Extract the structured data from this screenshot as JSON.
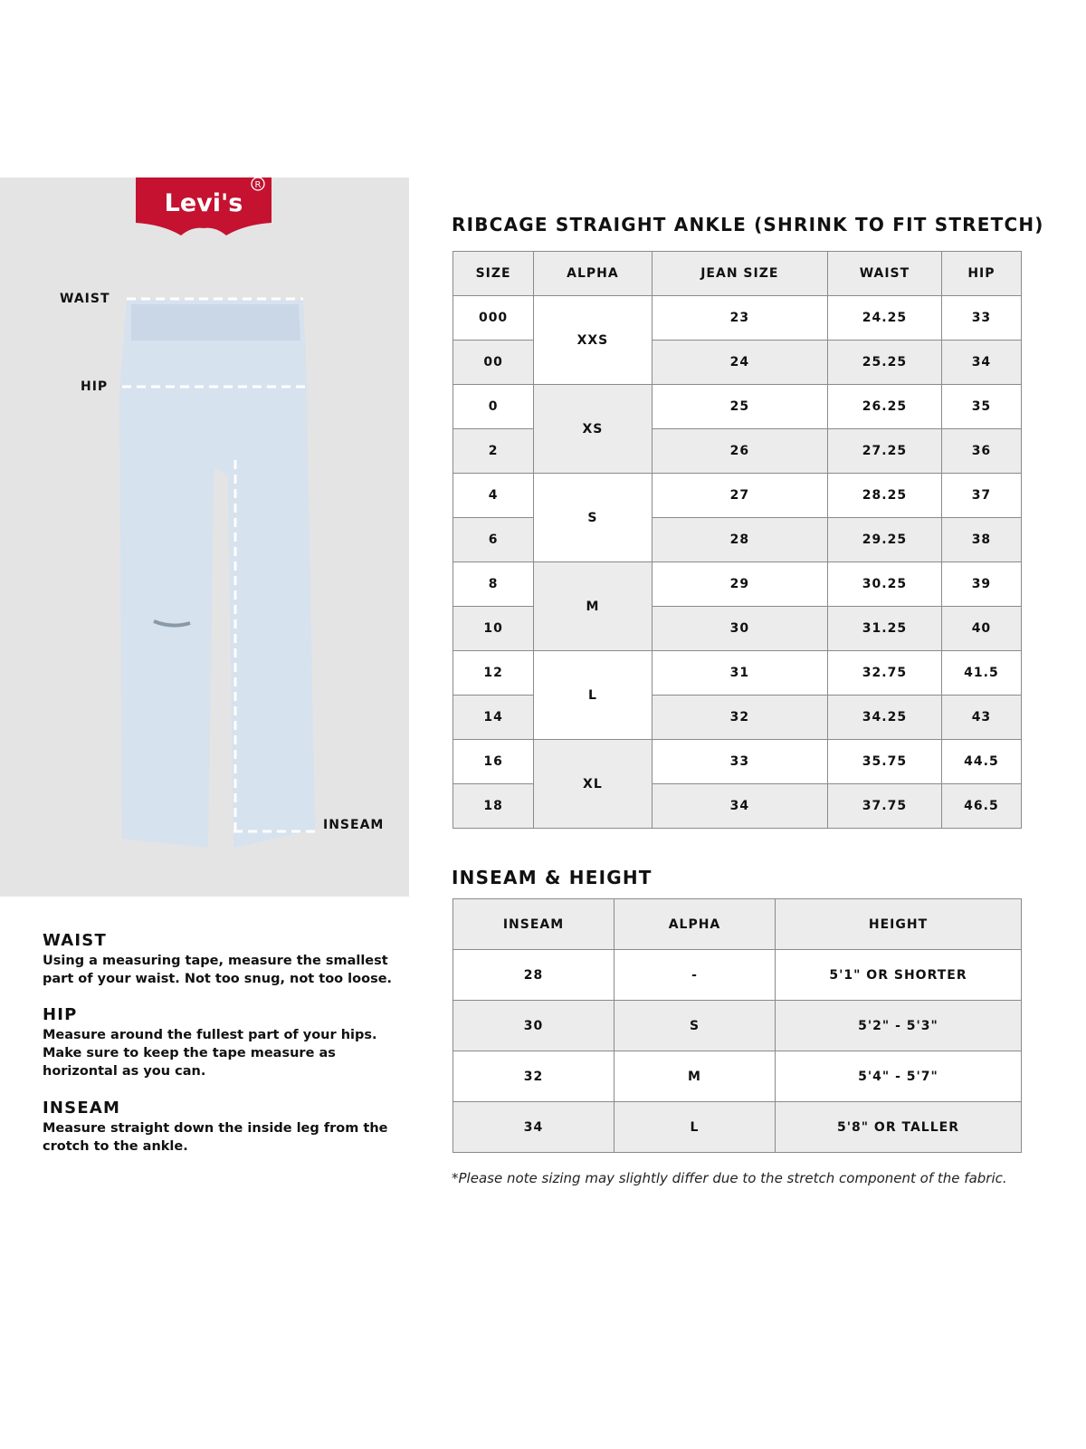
{
  "brand": {
    "logo_text": "Levi's",
    "color": "#c41230"
  },
  "diagram": {
    "labels": {
      "waist": "WAIST",
      "hip": "HIP",
      "inseam": "INSEAM"
    }
  },
  "size_chart": {
    "title": "RIBCAGE STRAIGHT ANKLE (SHRINK TO FIT STRETCH)",
    "headers": [
      "SIZE",
      "ALPHA",
      "JEAN SIZE",
      "WAIST",
      "HIP"
    ],
    "rows": [
      {
        "size": "000",
        "alpha": "XXS",
        "jean": "23",
        "waist": "24.25",
        "hip": "33"
      },
      {
        "size": "00",
        "alpha": "XXS",
        "jean": "24",
        "waist": "25.25",
        "hip": "34"
      },
      {
        "size": "0",
        "alpha": "XS",
        "jean": "25",
        "waist": "26.25",
        "hip": "35"
      },
      {
        "size": "2",
        "alpha": "XS",
        "jean": "26",
        "waist": "27.25",
        "hip": "36"
      },
      {
        "size": "4",
        "alpha": "S",
        "jean": "27",
        "waist": "28.25",
        "hip": "37"
      },
      {
        "size": "6",
        "alpha": "S",
        "jean": "28",
        "waist": "29.25",
        "hip": "38"
      },
      {
        "size": "8",
        "alpha": "M",
        "jean": "29",
        "waist": "30.25",
        "hip": "39"
      },
      {
        "size": "10",
        "alpha": "M",
        "jean": "30",
        "waist": "31.25",
        "hip": "40"
      },
      {
        "size": "12",
        "alpha": "L",
        "jean": "31",
        "waist": "32.75",
        "hip": "41.5"
      },
      {
        "size": "14",
        "alpha": "L",
        "jean": "32",
        "waist": "34.25",
        "hip": "43"
      },
      {
        "size": "16",
        "alpha": "XL",
        "jean": "33",
        "waist": "35.75",
        "hip": "44.5"
      },
      {
        "size": "18",
        "alpha": "XL",
        "jean": "34",
        "waist": "37.75",
        "hip": "46.5"
      }
    ]
  },
  "inseam_chart": {
    "title": "INSEAM & HEIGHT",
    "headers": [
      "INSEAM",
      "ALPHA",
      "HEIGHT"
    ],
    "rows": [
      {
        "inseam": "28",
        "alpha": "-",
        "height": "5'1\" OR SHORTER"
      },
      {
        "inseam": "30",
        "alpha": "S",
        "height": "5'2\" - 5'3\""
      },
      {
        "inseam": "32",
        "alpha": "M",
        "height": "5'4\" - 5'7\""
      },
      {
        "inseam": "34",
        "alpha": "L",
        "height": "5'8\" OR TALLER"
      }
    ]
  },
  "instructions": [
    {
      "title": "WAIST",
      "text": "Using a measuring tape, measure the smallest part of your waist. Not too snug, not too loose."
    },
    {
      "title": "HIP",
      "text": "Measure around the fullest part of your hips. Make sure to keep the tape measure as horizontal as you can."
    },
    {
      "title": "INSEAM",
      "text": "Measure straight down the inside leg from the crotch to the ankle."
    }
  ],
  "note": "*Please note sizing may slightly differ due to the stretch component of the fabric."
}
